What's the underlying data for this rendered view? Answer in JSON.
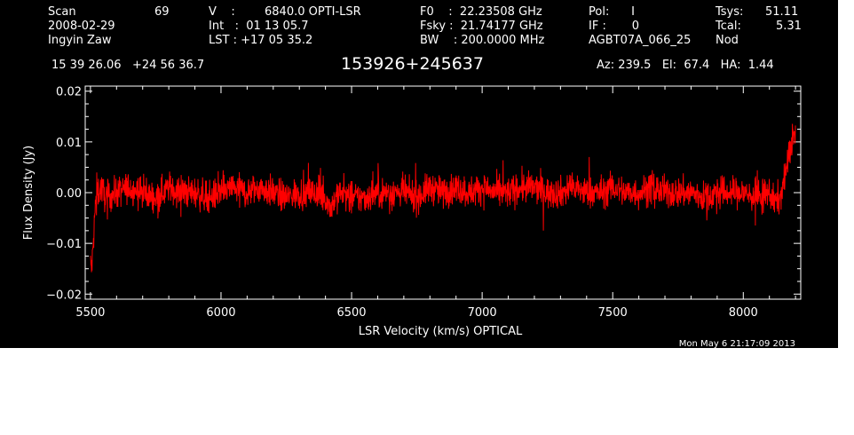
{
  "header": {
    "scan_label": "Scan",
    "scan_value": "69",
    "date": "2008-02-29",
    "observer": "Ingyin Zaw",
    "v_label": "V    :",
    "v_value": "6840.0 OPTI-LSR",
    "int_line": "Int   :  01 13 05.7",
    "lst_line": "LST : +17 05 35.2",
    "f0_line": "F0    :  22.23508 GHz",
    "fsky_line": "Fsky :  21.74177 GHz",
    "bw_line": "BW    : 200.0000 MHz",
    "pol_line": "Pol:      I",
    "if_line": "IF :       0",
    "project": "AGBT07A_066_25",
    "tsys_label": "Tsys:",
    "tsys_value": "51.11",
    "tcal_label": "Tcal:",
    "tcal_value": "5.31",
    "proc": "Nod",
    "coords": "15 39 26.06   +24 56 36.7",
    "source": "153926+245637",
    "azel": "Az: 239.5   El:  67.4   HA:  1.44"
  },
  "footer": {
    "timestamp": "Mon May  6 21:17:09 2013"
  },
  "colors": {
    "background": "#000000",
    "axes": "#ffffff",
    "trace": "#ff0000"
  },
  "chart_data": {
    "type": "line",
    "title": "153926+245637",
    "xlabel": "LSR Velocity (km/s) OPTICAL",
    "ylabel": "Flux Density (Jy)",
    "xlim": [
      5480,
      8220
    ],
    "ylim": [
      -0.021,
      0.021
    ],
    "xticks": [
      5500,
      6000,
      6500,
      7000,
      7500,
      8000
    ],
    "xtick_labels": [
      "5500",
      "6000",
      "6500",
      "7000",
      "7500",
      "8000"
    ],
    "yticks": [
      -0.02,
      -0.01,
      0.0,
      0.01,
      0.02
    ],
    "ytick_labels": [
      "−0.02",
      "−0.01",
      "0.00",
      "0.01",
      "0.02"
    ],
    "grid": false,
    "series": [
      {
        "x": [
          5500,
          5505,
          5510,
          5515,
          5520,
          5525,
          5530,
          5540,
          5560,
          5600,
          5650,
          5700,
          5750,
          5800,
          5850,
          5900,
          5950,
          6000,
          6050,
          6100,
          6150,
          6200,
          6250,
          6300,
          6350,
          6400,
          6420,
          6450,
          6500,
          6550,
          6600,
          6650,
          6700,
          6750,
          6800,
          6850,
          6900,
          6950,
          7000,
          7050,
          7100,
          7150,
          7200,
          7250,
          7300,
          7350,
          7400,
          7450,
          7500,
          7550,
          7600,
          7650,
          7700,
          7750,
          7800,
          7850,
          7900,
          7950,
          8000,
          8050,
          8100,
          8120,
          8140,
          8150,
          8160,
          8170,
          8180,
          8190,
          8200
        ],
        "y": [
          -0.014,
          -0.015,
          -0.011,
          -0.006,
          -0.002,
          0.001,
          0.0,
          0.001,
          -0.001,
          0.0,
          0.001,
          0.0,
          -0.001,
          0.001,
          0.0,
          0.0,
          -0.001,
          0.0,
          0.001,
          0.0,
          0.001,
          0.0,
          -0.001,
          0.0,
          0.0,
          -0.001,
          -0.003,
          0.0,
          -0.001,
          -0.001,
          0.0,
          0.0,
          0.0,
          -0.001,
          0.001,
          0.0,
          0.001,
          0.0,
          0.001,
          0.0,
          0.0,
          0.001,
          0.001,
          0.0,
          0.0,
          0.001,
          0.0,
          0.0,
          0.001,
          0.0,
          0.0,
          0.001,
          0.0,
          0.0,
          0.0,
          -0.001,
          0.0,
          0.0,
          0.0,
          -0.001,
          0.0,
          -0.002,
          -0.001,
          0.001,
          0.003,
          0.006,
          0.008,
          0.012,
          0.011
        ]
      }
    ]
  }
}
